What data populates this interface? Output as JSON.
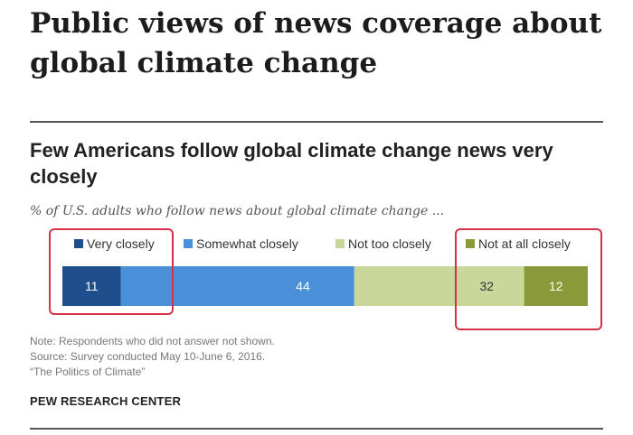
{
  "page": {
    "title": "Public views of news coverage about global climate change"
  },
  "chart_data": {
    "type": "bar",
    "orientation": "horizontal-stacked",
    "title": "Few Americans follow global climate change news very closely",
    "subtitle": "% of U.S. adults who follow news about global climate change ...",
    "categories": [
      ""
    ],
    "series": [
      {
        "name": "Very closely",
        "values": [
          11
        ],
        "color": "#1f4e8c",
        "label_color": "#ffffff"
      },
      {
        "name": "Somewhat closely",
        "values": [
          44
        ],
        "color": "#4a90d9",
        "label_color": "#ffffff"
      },
      {
        "name": "Not too closely",
        "values": [
          32
        ],
        "color": "#c9d79a",
        "label_color": "#333333"
      },
      {
        "name": "Not at all closely",
        "values": [
          12
        ],
        "color": "#8a9a3a",
        "label_color": "#ffffff"
      }
    ],
    "data_labels": [
      "11",
      "44",
      "32",
      "12"
    ],
    "legend_position": "top",
    "grid": false
  },
  "highlights": {
    "color": "#d9304a"
  },
  "notes": {
    "note": "Note: Respondents who did not answer not shown.",
    "source": "Source: Survey conducted May 10-June 6, 2016.",
    "report": "“The Politics of Climate”"
  },
  "organization": "PEW RESEARCH CENTER"
}
